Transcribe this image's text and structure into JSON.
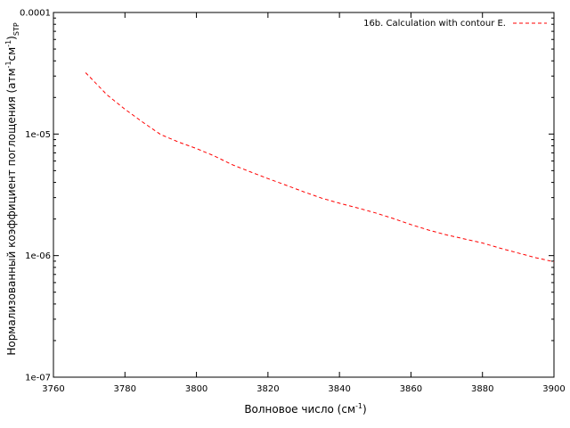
{
  "chart_data": {
    "type": "line",
    "title": "",
    "xlabel": {
      "text": "Волновое число (см",
      "sup": "-1",
      "tail": ")"
    },
    "ylabel": {
      "p1": "Нормализованный коэффициент поглощения (атм",
      "sup1": "-1",
      "p2": "см",
      "sup2": "-1",
      "p3": ")",
      "sub": "STP"
    },
    "xlim": [
      3760,
      3900
    ],
    "ylim": [
      1e-07,
      0.0001
    ],
    "yscale": "log",
    "grid": false,
    "legend_position": "top-right",
    "x_ticks": [
      {
        "value": 3760,
        "label": "3760"
      },
      {
        "value": 3780,
        "label": "3780"
      },
      {
        "value": 3800,
        "label": "3800"
      },
      {
        "value": 3820,
        "label": "3820"
      },
      {
        "value": 3840,
        "label": "3840"
      },
      {
        "value": 3860,
        "label": "3860"
      },
      {
        "value": 3880,
        "label": "3880"
      },
      {
        "value": 3900,
        "label": "3900"
      }
    ],
    "y_ticks": [
      {
        "value": 0.0001,
        "label": "0.0001"
      },
      {
        "value": 1e-05,
        "label": "1e-05"
      },
      {
        "value": 1e-06,
        "label": "1e-06"
      },
      {
        "value": 1e-07,
        "label": "1e-07"
      }
    ],
    "series": [
      {
        "name": "16b. Calculation with contour E.",
        "color": "#ff0000",
        "style": "dashed",
        "x": [
          3769,
          3775,
          3780,
          3785,
          3790,
          3795,
          3800,
          3805,
          3810,
          3815,
          3820,
          3825,
          3830,
          3835,
          3840,
          3845,
          3850,
          3855,
          3860,
          3865,
          3870,
          3875,
          3880,
          3885,
          3890,
          3895,
          3900
        ],
        "y": [
          3.2e-05,
          2.1e-05,
          1.6e-05,
          1.25e-05,
          9.9e-06,
          8.6e-06,
          7.6e-06,
          6.6e-06,
          5.6e-06,
          4.9e-06,
          4.3e-06,
          3.8e-06,
          3.35e-06,
          2.97e-06,
          2.7e-06,
          2.47e-06,
          2.25e-06,
          2.02e-06,
          1.8e-06,
          1.62e-06,
          1.48e-06,
          1.37e-06,
          1.27e-06,
          1.15e-06,
          1.05e-06,
          9.6e-07,
          8.9e-07
        ]
      }
    ]
  }
}
